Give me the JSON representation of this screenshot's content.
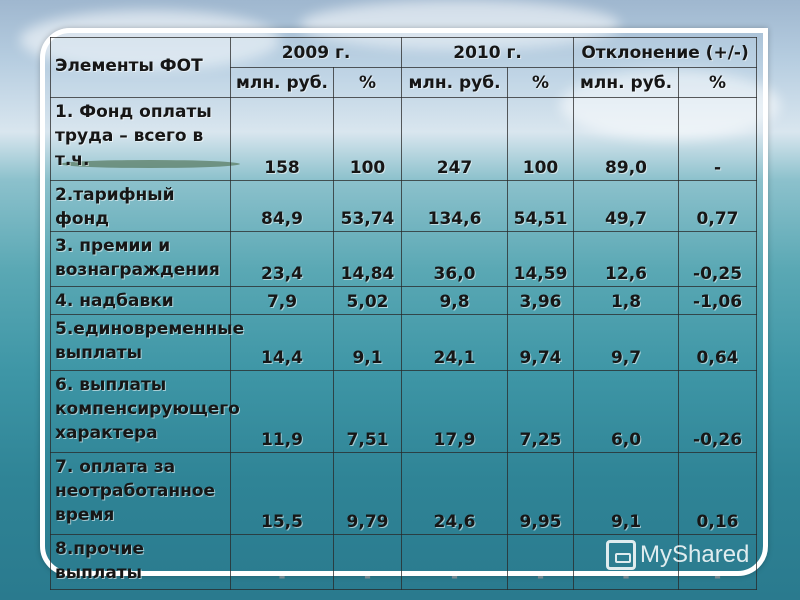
{
  "table": {
    "header_elements": "Элементы ФОТ",
    "groups": [
      "2009 г.",
      "2010 г.",
      "Отклонение (+/-)"
    ],
    "subheaders": [
      "млн. руб.",
      "%",
      "млн. руб.",
      "%",
      "млн. руб.",
      "%"
    ],
    "rows": [
      {
        "label": "1. Фонд оплаты труда – всего в т.ч.",
        "values": [
          "158",
          "100",
          "247",
          "100",
          "89,0",
          "-"
        ]
      },
      {
        "label": "2.тарифный фонд",
        "values": [
          "84,9",
          "53,74",
          "134,6",
          "54,51",
          "49,7",
          "0,77"
        ]
      },
      {
        "label": "3. премии и вознаграждения",
        "values": [
          "23,4",
          "14,84",
          "36,0",
          "14,59",
          "12,6",
          "-0,25"
        ]
      },
      {
        "label": "4. надбавки",
        "values": [
          "7,9",
          "5,02",
          "9,8",
          "3,96",
          "1,8",
          "-1,06"
        ]
      },
      {
        "label": "5.единовременные выплаты",
        "values": [
          "14,4",
          "9,1",
          "24,1",
          "9,74",
          "9,7",
          "0,64"
        ]
      },
      {
        "label": "6. выплаты компенсирующего характера",
        "values": [
          "11,9",
          "7,51",
          "17,9",
          "7,25",
          "6,0",
          "-0,26"
        ]
      },
      {
        "label": "7. оплата за неотработанное время",
        "values": [
          "15,5",
          "9,79",
          "24,6",
          "9,95",
          "9,1",
          "0,16"
        ]
      },
      {
        "label": "8.прочие выплаты",
        "values": [
          "-",
          "-",
          "-",
          "-",
          "-",
          "-"
        ]
      }
    ]
  },
  "watermark": {
    "text": "MyShared",
    "icon": "projector-icon"
  }
}
